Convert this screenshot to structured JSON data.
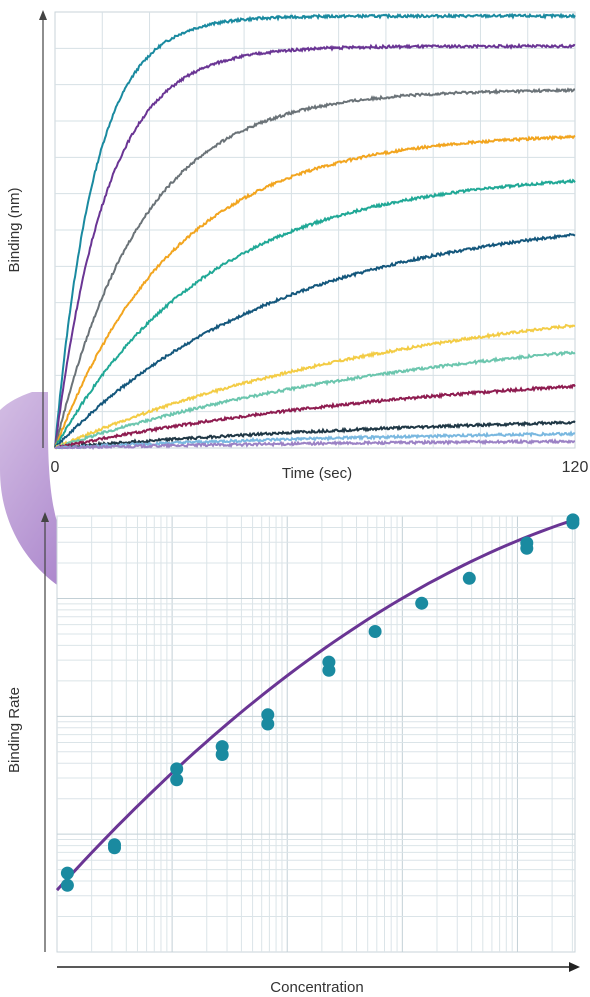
{
  "chart_data": [
    {
      "type": "line",
      "title": "",
      "xlabel": "Time (sec)",
      "ylabel": "Binding (nm)",
      "xlim": [
        0,
        120
      ],
      "x_tick_labels": [
        "0",
        "120"
      ],
      "grid": true,
      "legend": "none",
      "series": [
        {
          "color": "#1a8aa0",
          "plateau": 1.0,
          "rate": 0.11
        },
        {
          "color": "#6a3594",
          "plateau": 0.93,
          "rate": 0.085
        },
        {
          "color": "#6b7378",
          "plateau": 0.83,
          "rate": 0.05
        },
        {
          "color": "#f2a51f",
          "plateau": 0.73,
          "rate": 0.036
        },
        {
          "color": "#20a896",
          "plateau": 0.64,
          "rate": 0.028
        },
        {
          "color": "#14577c",
          "plateau": 0.55,
          "rate": 0.019
        },
        {
          "color": "#f3cc45",
          "plateau": 0.38,
          "rate": 0.0115
        },
        {
          "color": "#6cc6ae",
          "plateau": 0.3,
          "rate": 0.0112
        },
        {
          "color": "#8e1c50",
          "plateau": 0.2,
          "rate": 0.0105
        },
        {
          "color": "#1f3745",
          "plateau": 0.085,
          "rate": 0.01
        },
        {
          "color": "#7ab8e0",
          "plateau": 0.045,
          "rate": 0.011
        },
        {
          "color": "#9b82c5",
          "plateau": 0.02,
          "rate": 0.012
        }
      ]
    },
    {
      "type": "scatter",
      "title": "",
      "xlabel": "Concentration",
      "ylabel": "Binding Rate",
      "x_scale": "log",
      "y_scale": "log",
      "xlim": [
        0,
        1
      ],
      "ylim": [
        0,
        1
      ],
      "grid": true,
      "legend": "none",
      "point_color": "#1a8aa0",
      "fit_color": "#6a3594",
      "points": [
        {
          "x": 0.02,
          "y": 0.181
        },
        {
          "x": 0.02,
          "y": 0.153
        },
        {
          "x": 0.111,
          "y": 0.239
        },
        {
          "x": 0.111,
          "y": 0.246
        },
        {
          "x": 0.231,
          "y": 0.395
        },
        {
          "x": 0.231,
          "y": 0.42
        },
        {
          "x": 0.319,
          "y": 0.453
        },
        {
          "x": 0.319,
          "y": 0.471
        },
        {
          "x": 0.407,
          "y": 0.523
        },
        {
          "x": 0.407,
          "y": 0.544
        },
        {
          "x": 0.525,
          "y": 0.646
        },
        {
          "x": 0.525,
          "y": 0.665
        },
        {
          "x": 0.614,
          "y": 0.735
        },
        {
          "x": 0.704,
          "y": 0.8
        },
        {
          "x": 0.796,
          "y": 0.857
        },
        {
          "x": 0.907,
          "y": 0.926
        },
        {
          "x": 0.907,
          "y": 0.938
        },
        {
          "x": 0.996,
          "y": 0.984
        },
        {
          "x": 0.996,
          "y": 0.991
        }
      ],
      "fit_line": [
        [
          0,
          0.142
        ],
        [
          0.5,
          0.648
        ],
        [
          1,
          0.992
        ]
      ]
    }
  ]
}
